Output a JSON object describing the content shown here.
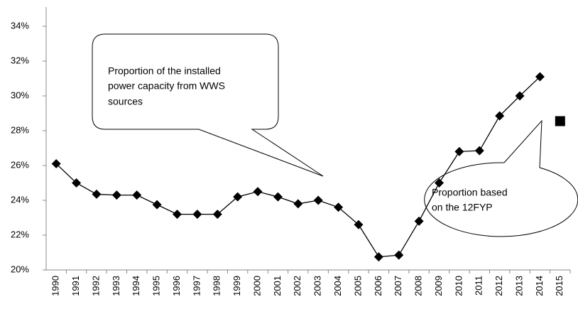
{
  "chart_data": {
    "type": "line",
    "categories": [
      "1990",
      "1991",
      "1992",
      "1993",
      "1994",
      "1995",
      "1996",
      "1997",
      "1998",
      "1999",
      "2000",
      "2001",
      "2002",
      "2003",
      "2004",
      "2005",
      "2006",
      "2007",
      "2008",
      "2009",
      "2010",
      "2011",
      "2012",
      "2013",
      "2014",
      "2015"
    ],
    "series": [
      {
        "color": "#000000",
        "marker": "diamond",
        "values": [
          26.1,
          25.0,
          24.35,
          24.3,
          24.3,
          23.75,
          23.2,
          23.2,
          23.2,
          24.2,
          24.5,
          24.2,
          23.8,
          24.0,
          23.6,
          22.6,
          20.75,
          20.85,
          22.8,
          25.0,
          26.8,
          26.85,
          28.85,
          30.0,
          31.1,
          null
        ]
      },
      {
        "color": "#000000",
        "marker": "square",
        "values": [
          null,
          null,
          null,
          null,
          null,
          null,
          null,
          null,
          null,
          null,
          null,
          null,
          null,
          null,
          null,
          null,
          null,
          null,
          null,
          null,
          null,
          null,
          null,
          null,
          null,
          28.55
        ]
      }
    ],
    "ylim": [
      20,
      35
    ],
    "yticks": [
      {
        "value": 20,
        "label": "20%"
      },
      {
        "value": 22,
        "label": "22%"
      },
      {
        "value": 24,
        "label": "24%"
      },
      {
        "value": 26,
        "label": "26%"
      },
      {
        "value": 28,
        "label": "28%"
      },
      {
        "value": 30,
        "label": "30%"
      },
      {
        "value": 32,
        "label": "32%"
      },
      {
        "value": 34,
        "label": "34%"
      }
    ],
    "grid": false,
    "annotations": [
      {
        "lines": [
          "Proportion of the installed",
          "power capacity from WWS",
          "sources"
        ]
      },
      {
        "lines": [
          "Proportion based",
          "on the 12FYP"
        ]
      }
    ]
  }
}
